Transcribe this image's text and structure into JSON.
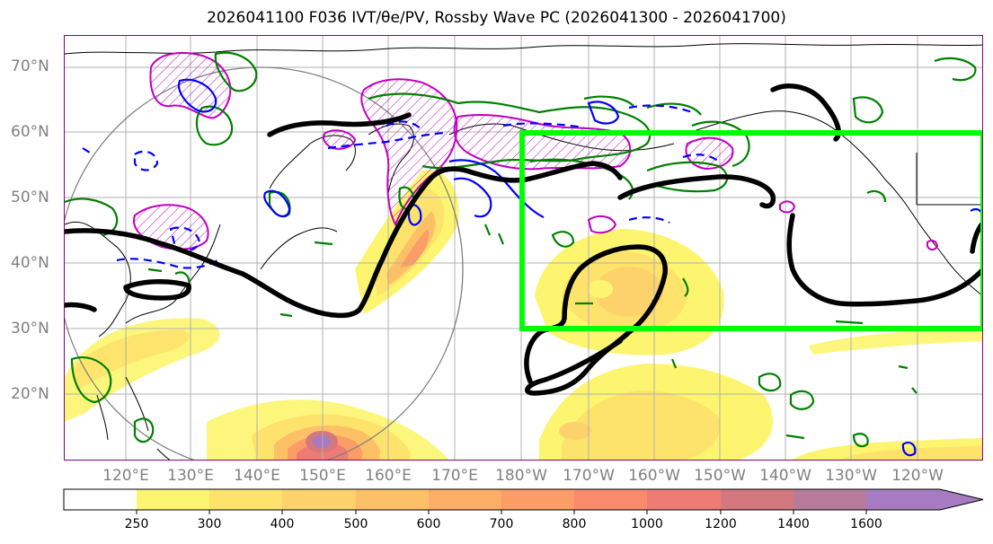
{
  "title": "2026041100 F036 IVT/θe/PV, Rossby Wave PC (2026041300 - 2026041700)",
  "lat_labels": [
    "70°N",
    "60°N",
    "50°N",
    "40°N",
    "30°N",
    "20°N"
  ],
  "lon_labels": [
    "120°E",
    "130°E",
    "140°E",
    "150°E",
    "160°E",
    "170°E",
    "180°W",
    "170°W",
    "160°W",
    "150°W",
    "140°W",
    "130°W",
    "120°W"
  ],
  "colorbar": {
    "labels": [
      "250",
      "300",
      "400",
      "500",
      "600",
      "700",
      "800",
      "1000",
      "1200",
      "1400",
      "1600"
    ],
    "colors": [
      "#ffffff",
      "#fdf56f",
      "#fde36c",
      "#fdd26a",
      "#fdc067",
      "#fdae66",
      "#fc9c66",
      "#f98a6c",
      "#ee7b74",
      "#d2787e",
      "#b57b98",
      "#a77bc2"
    ]
  },
  "colors": {
    "highlight_box": "#00ff00",
    "circle": "#808080",
    "theta_e_contour": "#000000",
    "pv_contour": "#008000",
    "pv_negative": "#0000ff",
    "pv_hatched": "#c000c0"
  }
}
